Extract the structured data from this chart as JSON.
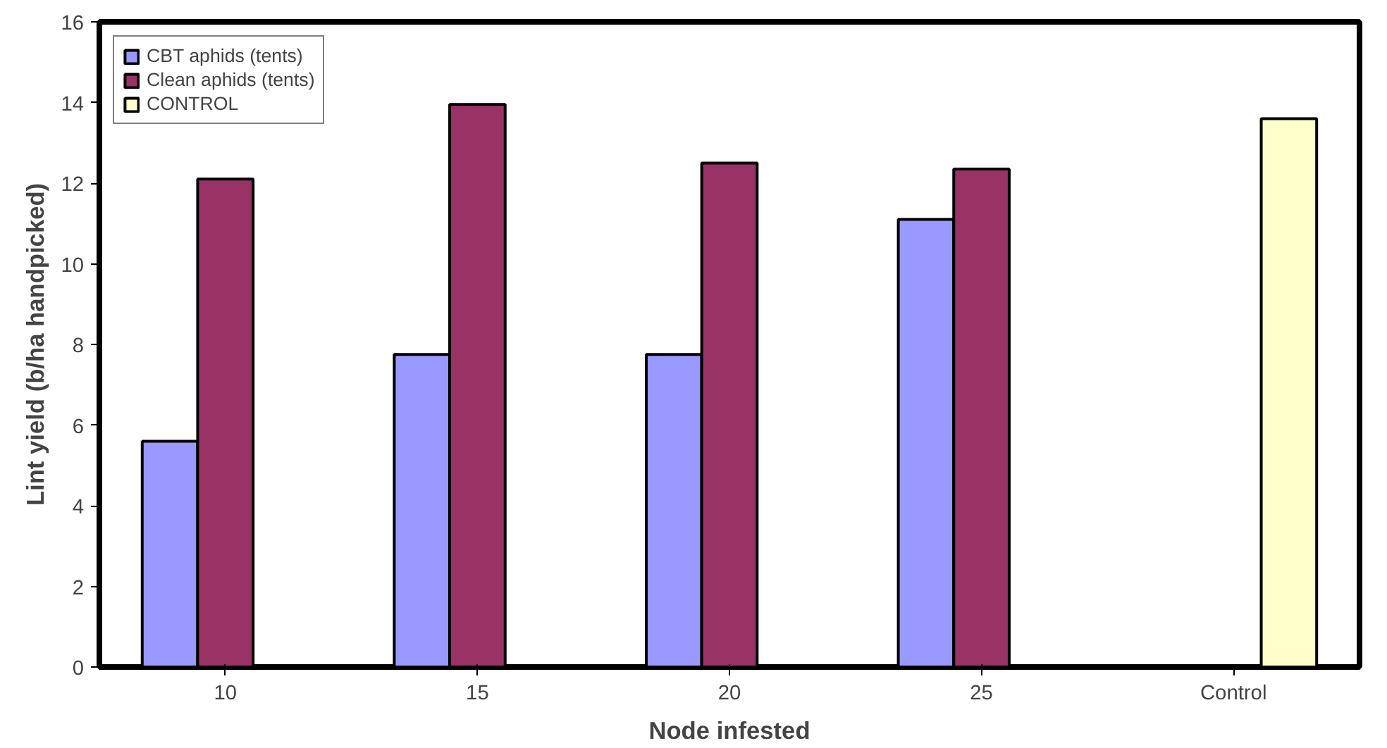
{
  "chart_data": {
    "type": "bar",
    "xlabel": "Node infested",
    "ylabel": "Lint yield (b/ha handpicked)",
    "categories": [
      "10",
      "15",
      "20",
      "25",
      "Control"
    ],
    "series": [
      {
        "name": "CBT aphids (tents)",
        "color": "#9999ff",
        "values": [
          5.6,
          7.75,
          7.75,
          11.1,
          null
        ]
      },
      {
        "name": "Clean aphids (tents)",
        "color": "#993366",
        "values": [
          12.1,
          13.95,
          12.5,
          12.35,
          null
        ]
      },
      {
        "name": "CONTROL",
        "color": "#ffffcc",
        "values": [
          null,
          null,
          null,
          null,
          13.6
        ]
      }
    ],
    "ylim": [
      0,
      16
    ],
    "yticks": [
      0,
      2,
      4,
      6,
      8,
      10,
      12,
      14,
      16
    ],
    "grid": false,
    "legend": "top left"
  }
}
